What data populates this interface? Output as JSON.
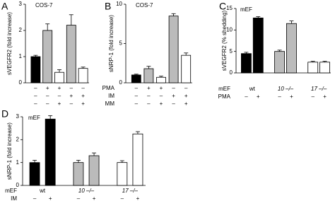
{
  "chart_data": [
    {
      "type": "bar",
      "panel": "A",
      "annotation": "COS-7",
      "ylabel": "sVEGFR2 (fold increase)",
      "ylim": [
        0,
        3
      ],
      "yticks": [
        0,
        1,
        2,
        3
      ],
      "values": [
        1.0,
        2.0,
        0.4,
        2.2,
        0.55
      ],
      "errors": [
        0.05,
        0.25,
        0.1,
        0.4,
        0.05
      ],
      "colors": [
        "#000000",
        "#bbbbbb",
        "#ffffff",
        "#bbbbbb",
        "#ffffff"
      ],
      "rows": [
        {
          "name": "PMA",
          "marks": [
            "–",
            "+",
            "+",
            "–",
            "–"
          ]
        },
        {
          "name": "IM",
          "marks": [
            "–",
            "–",
            "–",
            "+",
            "+"
          ]
        },
        {
          "name": "MM",
          "marks": [
            "–",
            "–",
            "+",
            "–",
            "+"
          ]
        }
      ]
    },
    {
      "type": "bar",
      "panel": "B",
      "annotation": "COS-7",
      "ylabel": "sNRP-1 (fold increase)",
      "ylim": [
        0,
        10
      ],
      "yticks": [
        0,
        5,
        10
      ],
      "values": [
        1.0,
        1.8,
        0.7,
        8.5,
        3.5
      ],
      "errors": [
        0.1,
        0.3,
        0.15,
        0.3,
        0.3
      ],
      "colors": [
        "#000000",
        "#bbbbbb",
        "#ffffff",
        "#bbbbbb",
        "#ffffff"
      ],
      "rows": [
        {
          "marks": [
            "–",
            "+",
            "+",
            "–",
            "–"
          ]
        },
        {
          "marks": [
            "–",
            "–",
            "–",
            "+",
            "+"
          ]
        },
        {
          "marks": [
            "–",
            "–",
            "+",
            "–",
            "+"
          ]
        }
      ]
    },
    {
      "type": "bar",
      "panel": "C",
      "annotation": "mEF",
      "ylabel": "sVEGFR2 (% shedding)",
      "ylim": [
        0,
        15
      ],
      "yticks": [
        0,
        5,
        10,
        15
      ],
      "values": [
        4.5,
        12.8,
        5.0,
        11.5,
        2.5,
        2.5
      ],
      "errors": [
        0.3,
        0.3,
        0.3,
        0.6,
        0.2,
        0.2
      ],
      "colors": [
        "#000000",
        "#000000",
        "#bbbbbb",
        "#bbbbbb",
        "#ffffff",
        "#ffffff"
      ],
      "group_label": "mEF",
      "groups": [
        "wt",
        "10 –/–",
        "17 –/–"
      ],
      "rows": [
        {
          "name": "PMA",
          "marks": [
            "–",
            "+",
            "–",
            "+",
            "–",
            "+"
          ]
        }
      ]
    },
    {
      "type": "bar",
      "panel": "D",
      "annotation": "mEF",
      "ylabel": "sNRP-1 (fold increase)",
      "ylim": [
        0,
        3
      ],
      "yticks": [
        0,
        1,
        2,
        3
      ],
      "values": [
        1.0,
        2.9,
        1.0,
        1.3,
        1.0,
        2.25
      ],
      "errors": [
        0.1,
        0.15,
        0.1,
        0.12,
        0.08,
        0.1
      ],
      "colors": [
        "#000000",
        "#000000",
        "#bbbbbb",
        "#bbbbbb",
        "#ffffff",
        "#ffffff"
      ],
      "group_label": "mEF",
      "groups": [
        "wt",
        "10 –/–",
        "17 –/–"
      ],
      "rows": [
        {
          "name": "IM",
          "marks": [
            "–",
            "+",
            "–",
            "+",
            "–",
            "+"
          ]
        }
      ]
    }
  ]
}
